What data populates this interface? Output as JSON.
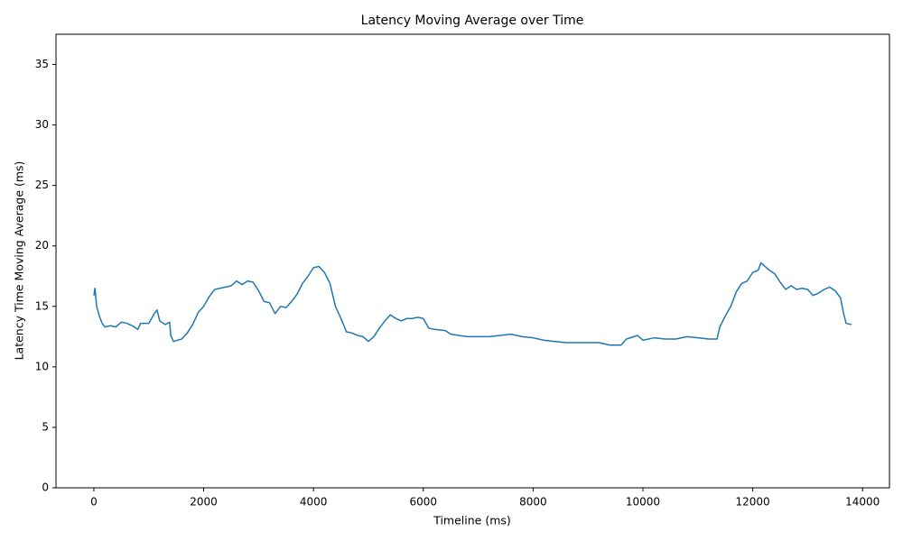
{
  "chart_data": {
    "type": "line",
    "title": "Latency Moving Average over Time",
    "x_label": "Timeline (ms)",
    "y_label": "Latency Time Moving Average (ms)",
    "xlim": [
      -690,
      14490
    ],
    "ylim": [
      0,
      37.5
    ],
    "xticks": [
      0,
      2000,
      4000,
      6000,
      8000,
      10000,
      12000,
      14000
    ],
    "yticks": [
      0,
      5,
      10,
      15,
      20,
      25,
      30,
      35
    ],
    "grid": false,
    "x": [
      0,
      20,
      50,
      100,
      150,
      200,
      300,
      400,
      500,
      600,
      700,
      800,
      850,
      1000,
      1100,
      1150,
      1200,
      1300,
      1380,
      1400,
      1450,
      1600,
      1700,
      1800,
      1900,
      2000,
      2100,
      2200,
      2400,
      2500,
      2600,
      2700,
      2800,
      2900,
      3000,
      3100,
      3200,
      3300,
      3400,
      3500,
      3600,
      3700,
      3800,
      3900,
      4000,
      4100,
      4200,
      4300,
      4400,
      4500,
      4600,
      4700,
      4800,
      4900,
      5000,
      5100,
      5200,
      5300,
      5400,
      5500,
      5600,
      5700,
      5800,
      5900,
      6000,
      6100,
      6200,
      6400,
      6500,
      6800,
      7000,
      7200,
      7400,
      7600,
      7800,
      8000,
      8200,
      8400,
      8600,
      8800,
      9000,
      9200,
      9400,
      9600,
      9700,
      9900,
      10000,
      10200,
      10400,
      10600,
      10800,
      11000,
      11200,
      11350,
      11400,
      11500,
      11600,
      11700,
      11800,
      11900,
      12000,
      12100,
      12150,
      12300,
      12400,
      12500,
      12600,
      12700,
      12800,
      12900,
      13000,
      13100,
      13200,
      13300,
      13400,
      13500,
      13600,
      13650,
      13700,
      13800
    ],
    "series": [
      {
        "name": "Latency Time Moving Average",
        "color": "#1f77b4",
        "values": [
          15.9,
          16.5,
          15.0,
          14.2,
          13.6,
          13.3,
          13.4,
          13.3,
          13.7,
          13.6,
          13.4,
          13.1,
          13.6,
          13.6,
          14.4,
          14.7,
          13.8,
          13.5,
          13.7,
          12.6,
          12.1,
          12.3,
          12.8,
          13.5,
          14.5,
          15.0,
          15.8,
          16.4,
          16.6,
          16.7,
          17.1,
          16.8,
          17.1,
          17.0,
          16.3,
          15.4,
          15.3,
          14.4,
          15.0,
          14.9,
          15.4,
          16.0,
          16.9,
          17.5,
          18.2,
          18.3,
          17.8,
          16.9,
          15.0,
          14.0,
          12.9,
          12.8,
          12.6,
          12.5,
          12.1,
          12.5,
          13.2,
          13.8,
          14.3,
          14.0,
          13.8,
          14.0,
          14.0,
          14.1,
          14.0,
          13.2,
          13.1,
          13.0,
          12.7,
          12.5,
          12.5,
          12.5,
          12.6,
          12.7,
          12.5,
          12.4,
          12.2,
          12.1,
          12.0,
          12.0,
          12.0,
          12.0,
          11.8,
          11.8,
          12.3,
          12.6,
          12.2,
          12.4,
          12.3,
          12.3,
          12.5,
          12.4,
          12.3,
          12.3,
          13.3,
          14.2,
          15.0,
          16.2,
          16.9,
          17.1,
          17.8,
          18.0,
          18.6,
          18.0,
          17.7,
          17.0,
          16.4,
          16.7,
          16.4,
          16.5,
          16.4,
          15.9,
          16.1,
          16.4,
          16.6,
          16.3,
          15.7,
          14.5,
          13.6,
          13.5
        ]
      }
    ]
  }
}
